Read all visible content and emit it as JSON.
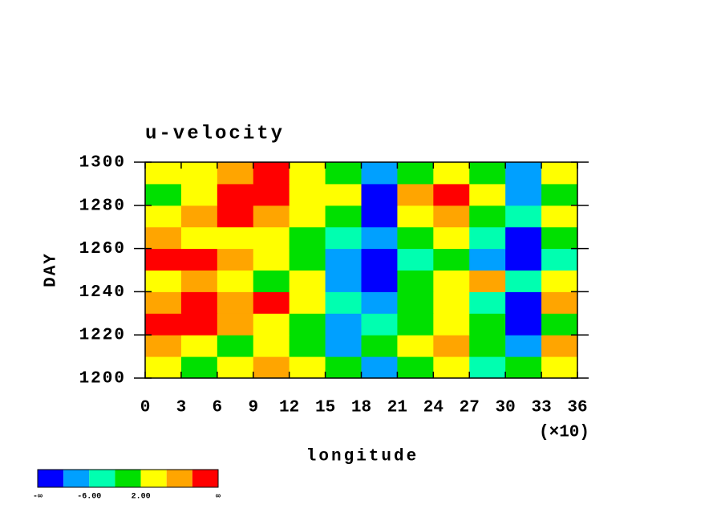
{
  "chart_data": {
    "type": "heatmap",
    "title": "u-velocity",
    "x_label": "longitude",
    "x_multiplier_label": "(×10)",
    "y_label": "DAY",
    "xlim": [
      0,
      36
    ],
    "xticks": [
      0,
      3,
      6,
      9,
      12,
      15,
      18,
      21,
      24,
      27,
      30,
      33,
      36
    ],
    "ylim": [
      1200,
      1300
    ],
    "yticks": [
      1200,
      1220,
      1240,
      1260,
      1280,
      1300
    ],
    "x": [
      1.5,
      4.5,
      7.5,
      10.5,
      13.5,
      16.5,
      19.5,
      22.5,
      25.5,
      28.5,
      31.5,
      34.5
    ],
    "y": [
      1205,
      1215,
      1225,
      1235,
      1245,
      1255,
      1265,
      1275,
      1285,
      1295
    ],
    "z": [
      [
        4,
        0,
        4,
        8,
        4,
        0,
        -8,
        0,
        4,
        -4,
        0,
        4
      ],
      [
        8,
        4,
        0,
        4,
        0,
        -8,
        0,
        4,
        8,
        0,
        -8,
        8
      ],
      [
        12,
        12,
        8,
        4,
        0,
        -8,
        -4,
        0,
        4,
        0,
        -12,
        0
      ],
      [
        8,
        12,
        8,
        12,
        4,
        -4,
        -8,
        0,
        4,
        -4,
        -12,
        8
      ],
      [
        4,
        8,
        4,
        0,
        4,
        -8,
        -12,
        0,
        4,
        8,
        -4,
        4
      ],
      [
        12,
        12,
        8,
        4,
        0,
        -8,
        -12,
        -4,
        0,
        -8,
        -12,
        -4
      ],
      [
        8,
        4,
        4,
        4,
        0,
        -4,
        -8,
        0,
        4,
        -4,
        -12,
        0
      ],
      [
        4,
        8,
        12,
        8,
        4,
        0,
        -12,
        4,
        8,
        0,
        -4,
        4
      ],
      [
        0,
        4,
        12,
        12,
        4,
        4,
        -12,
        8,
        12,
        4,
        -8,
        0
      ],
      [
        4,
        4,
        8,
        12,
        4,
        0,
        -8,
        0,
        4,
        0,
        -8,
        4
      ]
    ],
    "levels": [
      -10,
      -6,
      -2,
      2,
      6,
      10
    ],
    "colors": [
      "#0000ff",
      "#00a0ff",
      "#00ffb0",
      "#00e000",
      "#ffff00",
      "#ffa500",
      "#ff0000"
    ],
    "colorbar_ticks": [
      {
        "label": "-∞"
      },
      {
        "value": -6,
        "label": "-6.00"
      },
      {
        "value": 2,
        "label": "2.00"
      },
      {
        "label": "∞"
      }
    ]
  }
}
